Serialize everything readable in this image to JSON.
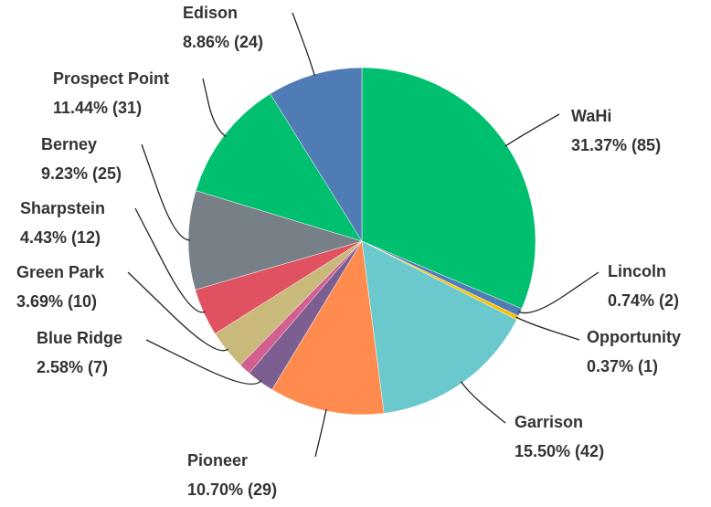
{
  "chart_data": {
    "type": "pie",
    "categories": [
      "WaHi",
      "Lincoln",
      "Opportunity",
      "Garrison",
      "Pioneer",
      "Blue Ridge",
      null,
      "Green Park",
      "Sharpstein",
      "Berney",
      "Prospect Point",
      "Edison"
    ],
    "values": [
      31.37,
      0.74,
      0.37,
      15.5,
      10.7,
      2.58,
      1.11,
      3.69,
      4.43,
      9.23,
      11.44,
      8.86
    ],
    "value_labels": [
      "31.37% (85)",
      "0.74% (2)",
      "0.37% (1)",
      "15.50% (42)",
      "10.70% (29)",
      "2.58% (7)",
      null,
      "3.69% (10)",
      "4.43% (12)",
      "9.23% (25)",
      "11.44% (31)",
      "8.86% (24)"
    ],
    "colors": [
      "#00bf6f",
      "#507cb6",
      "#f9be00",
      "#6bc8cd",
      "#ff8b4f",
      "#7d5e90",
      "#d25f90",
      "#c9b97a",
      "#e05161",
      "#768086",
      "#00bf6f",
      "#507cb6"
    ]
  }
}
